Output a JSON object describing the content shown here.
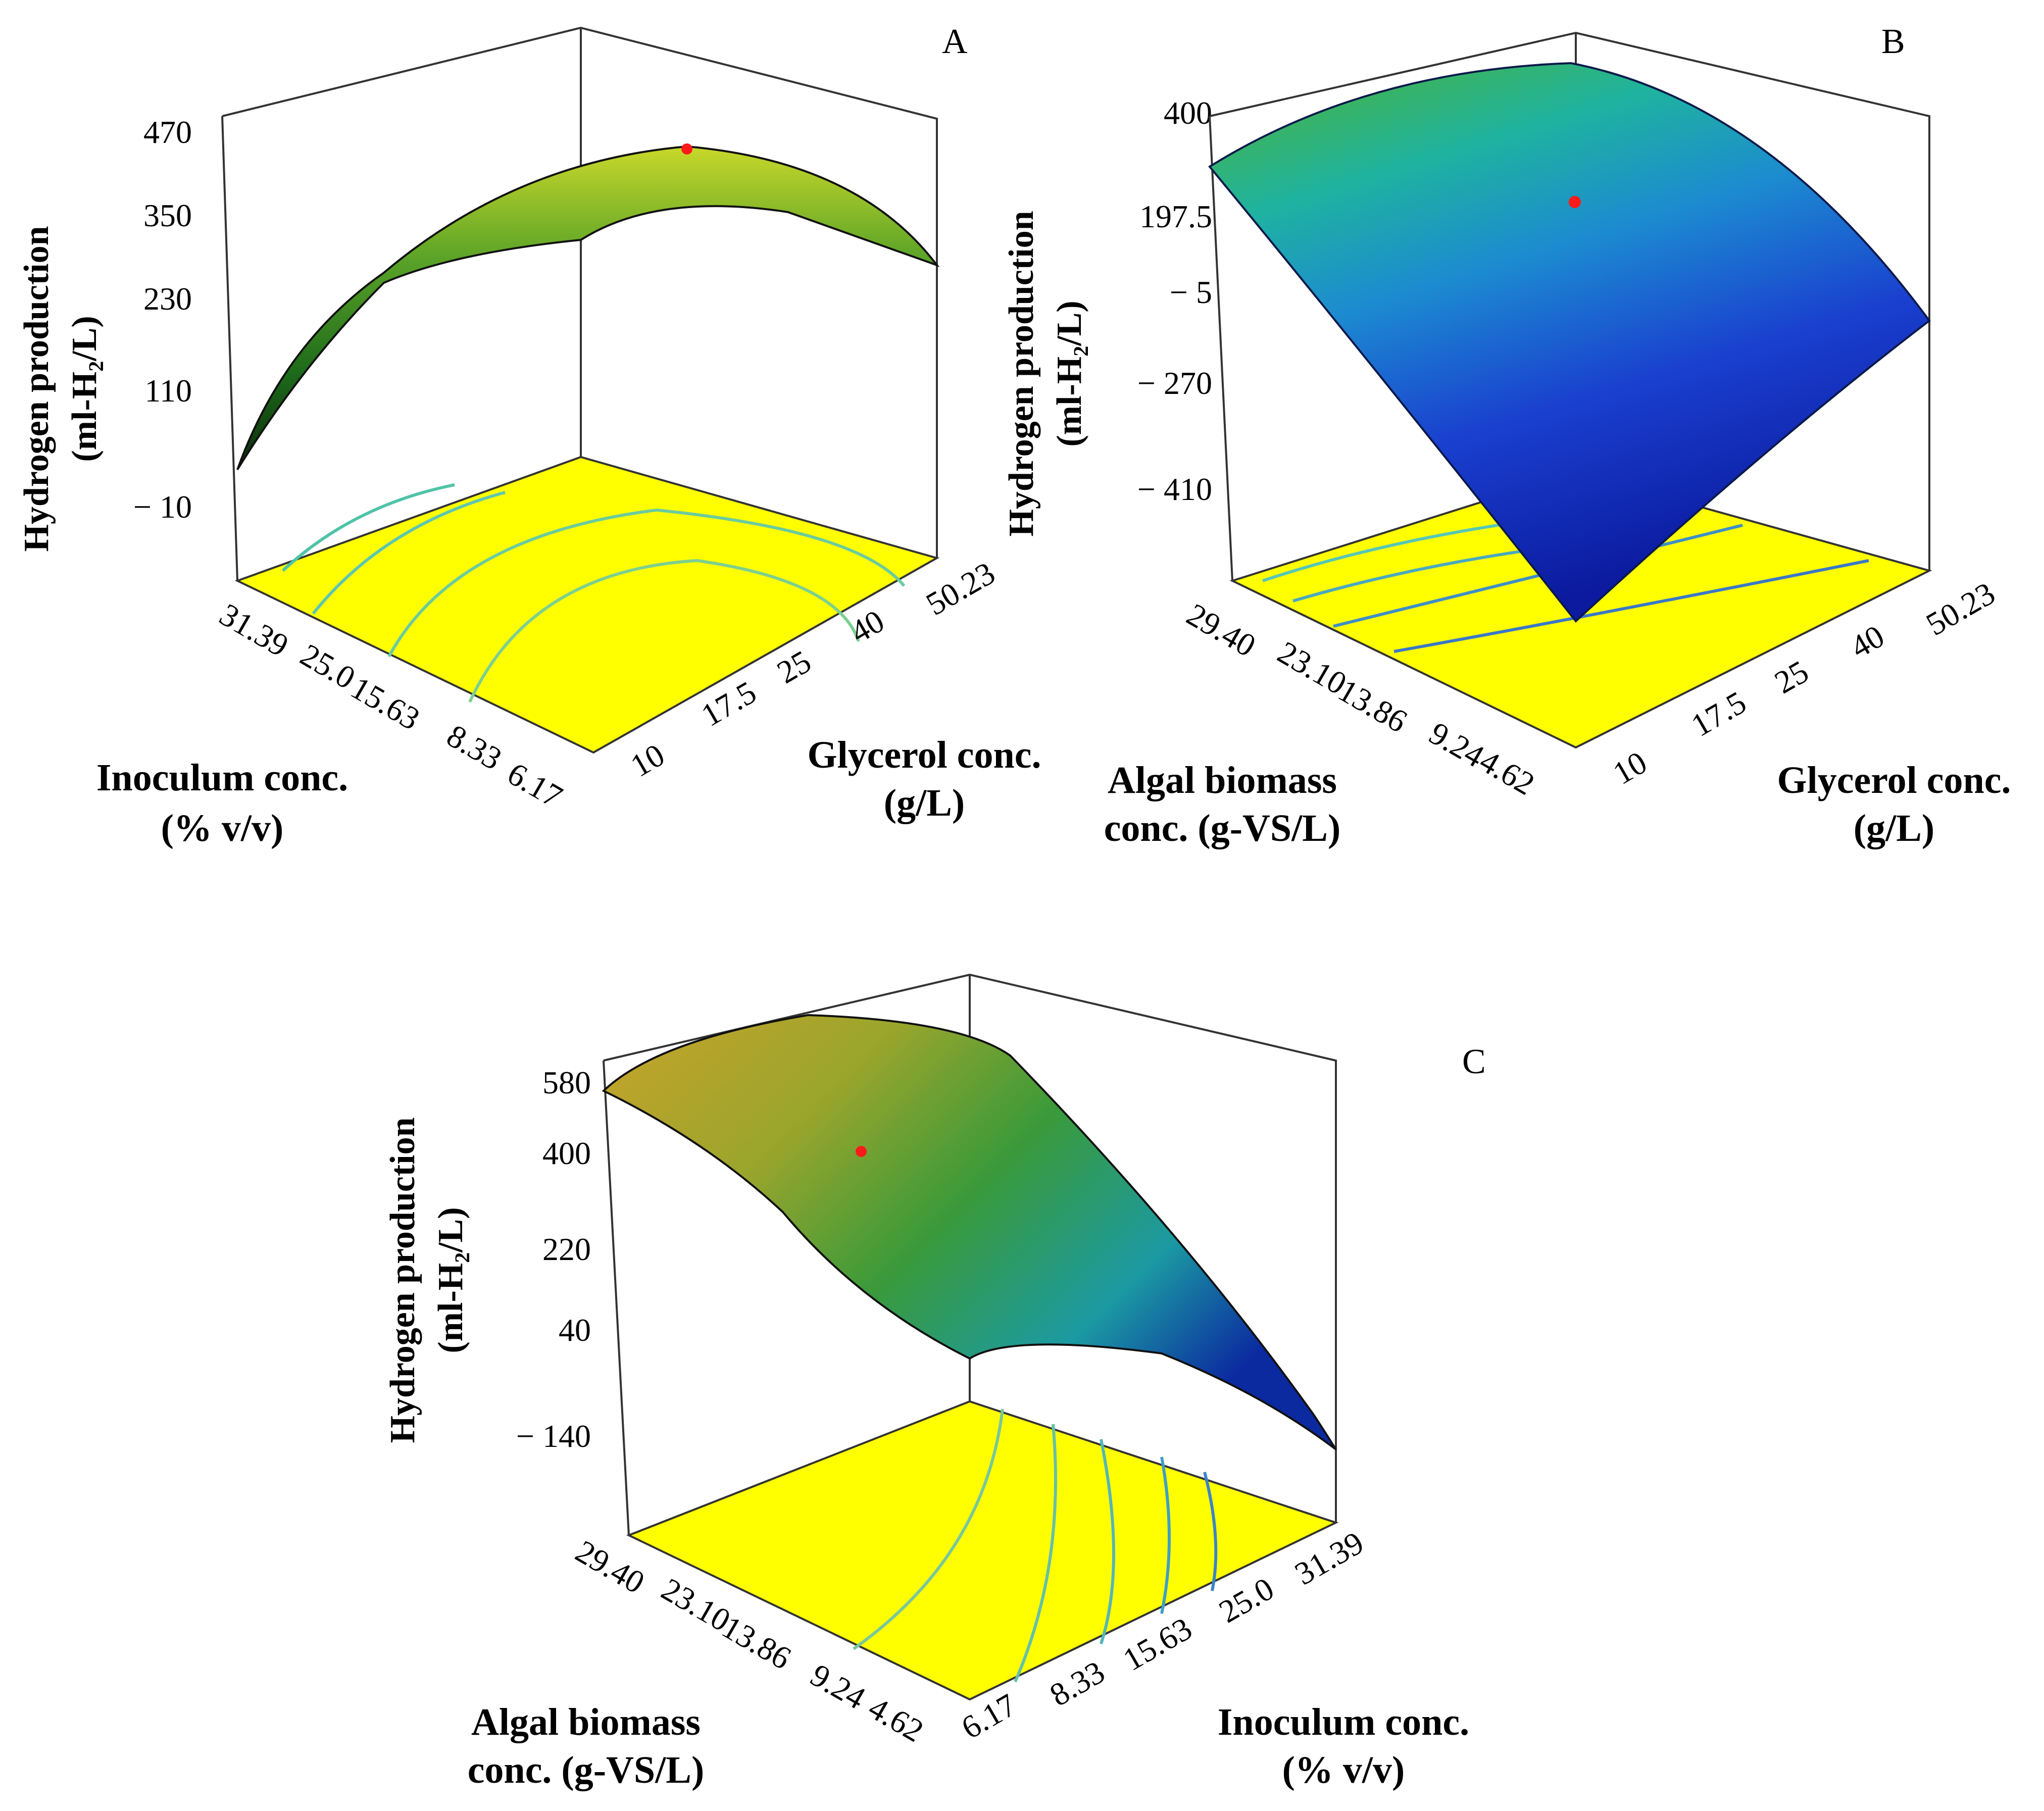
{
  "chart_data": [
    {
      "type": "surface3d",
      "panel": "A",
      "zlabel": [
        "Hydrogen production",
        "(ml-H₂/L)"
      ],
      "z_ticks": [
        "470",
        "350",
        "230",
        "110",
        "− 10"
      ],
      "z_range": [
        -10,
        470
      ],
      "x_label": [
        "Inoculum conc.",
        "(% v/v)"
      ],
      "x_ticks": [
        "31.39",
        "25.0",
        "15.63",
        "8.33",
        "6.17"
      ],
      "y_label": [
        "Glycerol conc.",
        "(g/L)"
      ],
      "y_ticks": [
        "10",
        "17.5",
        "25",
        "40",
        "50.23"
      ],
      "colormap": "yellow-green",
      "optimum_marker": "red point near the peak of the surface"
    },
    {
      "type": "surface3d",
      "panel": "B",
      "zlabel": [
        "Hydrogen production",
        "(ml-H₂/L)"
      ],
      "z_ticks": [
        "400",
        "197.5",
        "− 5",
        "− 270",
        "− 410"
      ],
      "z_range": [
        -410,
        400
      ],
      "x_label": [
        "Algal biomass",
        "conc. (g-VS/L)"
      ],
      "x_ticks": [
        "29.40",
        "23.10",
        "13.86",
        "9.24",
        "4.62"
      ],
      "y_label": [
        "Glycerol conc.",
        "(g/L)"
      ],
      "y_ticks": [
        "10",
        "17.5",
        "25",
        "40",
        "50.23"
      ],
      "colormap": "green-cyan-blue",
      "optimum_marker": "red point on the surface"
    },
    {
      "type": "surface3d",
      "panel": "C",
      "zlabel": [
        "Hydrogen production",
        "(ml-H₂/L)"
      ],
      "z_ticks": [
        "580",
        "400",
        "220",
        "40",
        "− 140"
      ],
      "z_range": [
        -140,
        580
      ],
      "x_label": [
        "Algal biomass",
        "conc. (g-VS/L)"
      ],
      "x_ticks": [
        "29.40",
        "23.10",
        "13.86",
        "9.24",
        "4.62"
      ],
      "y_label": [
        "Inoculum conc.",
        "(% v/v)"
      ],
      "y_ticks": [
        "6.17",
        "8.33",
        "15.63",
        "25.0",
        "31.39"
      ],
      "colormap": "orange-green-blue",
      "optimum_marker": "red point on the surface"
    }
  ]
}
